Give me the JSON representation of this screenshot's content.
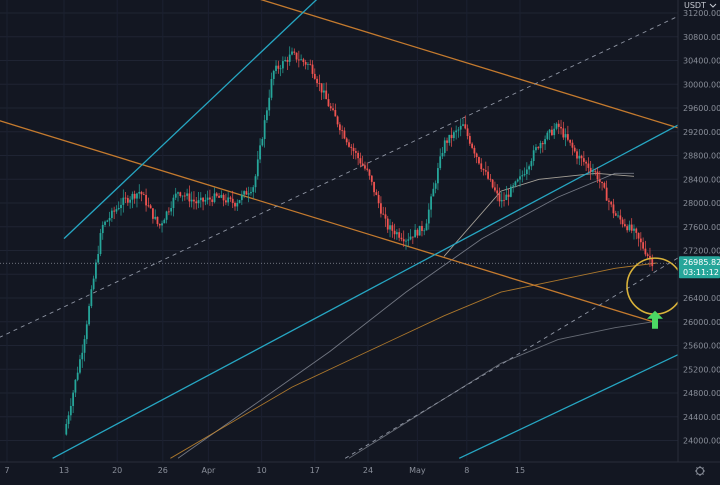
{
  "chart_data": {
    "type": "candlestick",
    "quote_currency": "USDT",
    "x_tick_labels": [
      "7",
      "13",
      "20",
      "26",
      "Apr",
      "10",
      "17",
      "24",
      "May",
      "8",
      "15"
    ],
    "y_tick_labels": [
      "24000.00",
      "24400.00",
      "24800.00",
      "25200.00",
      "25600.00",
      "26000.00",
      "26400.00",
      "26800.00",
      "27200.00",
      "27600.00",
      "28000.00",
      "28400.00",
      "28800.00",
      "29200.00",
      "29600.00",
      "30000.00",
      "30400.00",
      "30800.00",
      "31200.00"
    ],
    "ylim": [
      23800,
      31400
    ],
    "last_price": "26985.82",
    "countdown": "03:11:12",
    "close_path": [
      [
        0,
        24100
      ],
      [
        5,
        25600
      ],
      [
        10,
        27600
      ],
      [
        15,
        28000
      ],
      [
        20,
        28200
      ],
      [
        25,
        27600
      ],
      [
        30,
        28200
      ],
      [
        35,
        28000
      ],
      [
        40,
        28100
      ],
      [
        45,
        28000
      ],
      [
        50,
        28300
      ],
      [
        55,
        30200
      ],
      [
        60,
        30500
      ],
      [
        65,
        30300
      ],
      [
        70,
        29600
      ],
      [
        75,
        29000
      ],
      [
        80,
        28500
      ],
      [
        85,
        27600
      ],
      [
        90,
        27400
      ],
      [
        95,
        27600
      ],
      [
        100,
        29000
      ],
      [
        105,
        29300
      ],
      [
        110,
        28600
      ],
      [
        115,
        28000
      ],
      [
        120,
        28400
      ],
      [
        125,
        29000
      ],
      [
        130,
        29300
      ],
      [
        135,
        28800
      ],
      [
        140,
        28500
      ],
      [
        145,
        27800
      ],
      [
        150,
        27500
      ],
      [
        155,
        26985
      ]
    ],
    "trend_lines": [
      {
        "kind": "resistance",
        "color": "#c47a2e",
        "p1": [
          -38,
          29800
        ],
        "p2": [
          155,
          26000
        ]
      },
      {
        "kind": "resistance",
        "color": "#c47a2e",
        "p1": [
          43,
          31600
        ],
        "p2": [
          170,
          29100
        ]
      },
      {
        "kind": "channel",
        "color": "#26a6c2",
        "p1": [
          0,
          27400
        ],
        "p2": [
          71,
          31700
        ]
      },
      {
        "kind": "channel",
        "color": "#26a6c2",
        "p1": [
          -3,
          23700
        ],
        "p2": [
          170,
          29600
        ]
      },
      {
        "kind": "channel",
        "color": "#26a6c2",
        "p1": [
          104,
          23700
        ],
        "p2": [
          170,
          25700
        ]
      },
      {
        "kind": "dashed",
        "color": "#8f95a3",
        "p1": [
          -38,
          25100
        ],
        "p2": [
          170,
          31400
        ]
      },
      {
        "kind": "dashed",
        "color": "#8f95a3",
        "p1": [
          74,
          23700
        ],
        "p2": [
          170,
          27400
        ]
      }
    ],
    "moving_averages": [
      {
        "color": "#c9c2b4",
        "points": [
          [
            100,
            27100
          ],
          [
            115,
            28200
          ],
          [
            125,
            28400
          ],
          [
            140,
            28500
          ],
          [
            150,
            28450
          ]
        ]
      },
      {
        "color": "#8a8f9a",
        "points": [
          [
            30,
            23700
          ],
          [
            50,
            24600
          ],
          [
            70,
            25500
          ],
          [
            90,
            26500
          ],
          [
            110,
            27400
          ],
          [
            130,
            28100
          ],
          [
            145,
            28500
          ],
          [
            150,
            28500
          ]
        ]
      },
      {
        "color": "#d18e2e",
        "points": [
          [
            28,
            23700
          ],
          [
            60,
            24900
          ],
          [
            80,
            25500
          ],
          [
            100,
            26100
          ],
          [
            115,
            26500
          ],
          [
            130,
            26700
          ],
          [
            145,
            26900
          ],
          [
            156,
            26990
          ]
        ]
      },
      {
        "color": "#7b7f89",
        "points": [
          [
            75,
            23700
          ],
          [
            100,
            24700
          ],
          [
            115,
            25300
          ],
          [
            130,
            25700
          ],
          [
            145,
            25900
          ],
          [
            155,
            26000
          ]
        ]
      }
    ],
    "annotations": [
      {
        "kind": "circle",
        "color": "#d9b23a",
        "center": [
          155,
          26600
        ]
      },
      {
        "kind": "arrow-up",
        "color": "#4cd964",
        "anchor": [
          155,
          26000
        ]
      }
    ]
  }
}
